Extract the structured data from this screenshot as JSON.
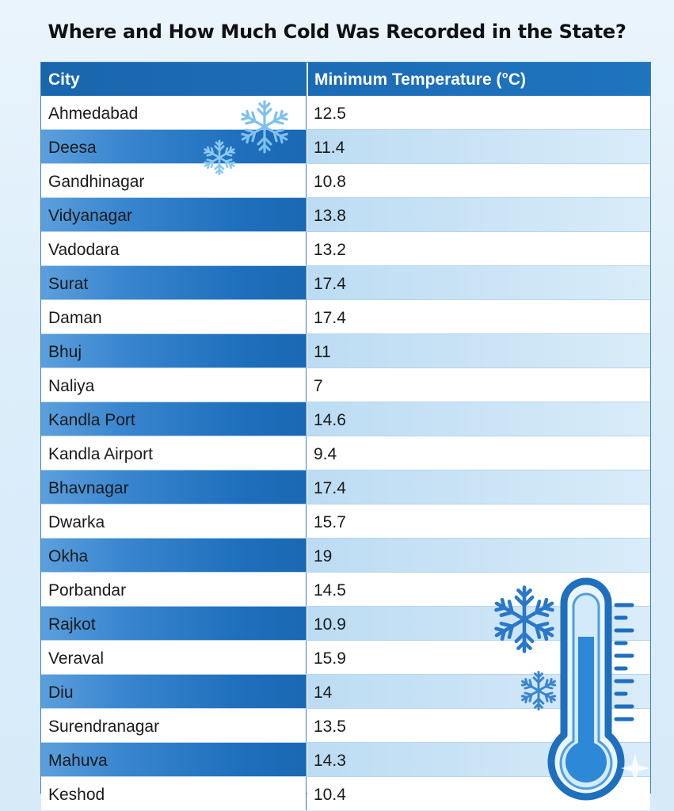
{
  "title": "Where and How Much Cold Was Recorded in the State?",
  "table": {
    "headers": [
      "City",
      "Minimum Temperature (°C)"
    ],
    "rows": [
      {
        "city": "Ahmedabad",
        "temp": "12.5"
      },
      {
        "city": "Deesa",
        "temp": "11.4"
      },
      {
        "city": "Gandhinagar",
        "temp": "10.8"
      },
      {
        "city": "Vidyanagar",
        "temp": "13.8"
      },
      {
        "city": "Vadodara",
        "temp": "13.2"
      },
      {
        "city": "Surat",
        "temp": "17.4"
      },
      {
        "city": "Daman",
        "temp": "17.4"
      },
      {
        "city": "Bhuj",
        "temp": "11"
      },
      {
        "city": "Naliya",
        "temp": "7"
      },
      {
        "city": "Kandla Port",
        "temp": "14.6"
      },
      {
        "city": "Kandla Airport",
        "temp": "9.4"
      },
      {
        "city": "Bhavnagar",
        "temp": "17.4"
      },
      {
        "city": "Dwarka",
        "temp": "15.7"
      },
      {
        "city": "Okha",
        "temp": "19"
      },
      {
        "city": "Porbandar",
        "temp": "14.5"
      },
      {
        "city": "Rajkot",
        "temp": "10.9"
      },
      {
        "city": "Veraval",
        "temp": "15.9"
      },
      {
        "city": "Diu",
        "temp": "14"
      },
      {
        "city": "Surendranagar",
        "temp": "13.5"
      },
      {
        "city": "Mahuva",
        "temp": "14.3"
      },
      {
        "city": "Keshod",
        "temp": "10.4"
      }
    ]
  },
  "icons": [
    "snowflake-icon",
    "thermometer-icon",
    "sparkle-icon"
  ],
  "colors": {
    "header": "#1a66ad",
    "accent": "#3f7fbd",
    "stripe": "#cde5f6"
  }
}
